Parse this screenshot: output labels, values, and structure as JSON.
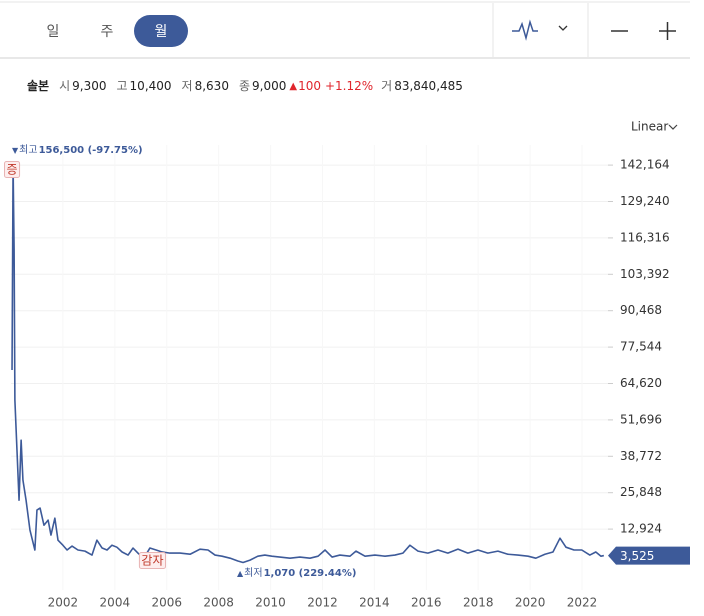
{
  "tabs": [
    "일",
    "주",
    "월"
  ],
  "selected_tab": 2,
  "quote": {
    "name": "솔본",
    "fields": [
      {
        "label": "시",
        "value": "9,300"
      },
      {
        "label": "고",
        "value": "10,400"
      },
      {
        "label": "저",
        "value": "8,630"
      },
      {
        "label": "종",
        "value": "9,000"
      }
    ],
    "change": "100",
    "change_pct": "+1.12%",
    "volume_label": "거",
    "volume": "83,840,485"
  },
  "scale_mode": "Linear",
  "chart_data": {
    "type": "line",
    "x": [
      2000.04,
      2000.08,
      2000.12,
      2000.15,
      2000.23,
      2000.31,
      2000.39,
      2000.46,
      2000.58,
      2000.73,
      2000.92,
      2001.0,
      2001.12,
      2001.27,
      2001.43,
      2001.54,
      2001.69,
      2001.81,
      2002.0,
      2002.16,
      2002.35,
      2002.58,
      2002.85,
      2003.12,
      2003.31,
      2003.51,
      2003.7,
      2003.89,
      2004.08,
      2004.28,
      2004.51,
      2004.7,
      2004.89,
      2005.12,
      2005.35,
      2005.59,
      2005.82,
      2006.12,
      2006.51,
      2006.9,
      2007.28,
      2007.59,
      2007.86,
      2008.13,
      2008.44,
      2008.74,
      2008.94,
      2009.21,
      2009.51,
      2009.78,
      2010.05,
      2010.36,
      2010.75,
      2011.13,
      2011.52,
      2011.83,
      2012.1,
      2012.37,
      2012.67,
      2013.06,
      2013.29,
      2013.64,
      2014.02,
      2014.41,
      2014.79,
      2015.1,
      2015.37,
      2015.68,
      2016.06,
      2016.45,
      2016.83,
      2017.22,
      2017.6,
      2017.99,
      2018.37,
      2018.76,
      2019.14,
      2019.53,
      2019.92,
      2020.22,
      2020.57,
      2020.88,
      2021.15,
      2021.38,
      2021.69,
      2021.99,
      2022.3,
      2022.53,
      2022.73,
      2022.84
    ],
    "series": [
      {
        "color": "#3d5a99",
        "values": [
          69400,
          142200,
          112000,
          58700,
          41000,
          23200,
          44500,
          30300,
          23200,
          12600,
          5500,
          19700,
          20400,
          14300,
          16100,
          10800,
          16800,
          9000,
          7200,
          5500,
          6900,
          5500,
          5100,
          3700,
          9000,
          6200,
          5500,
          7200,
          6500,
          4800,
          3700,
          6200,
          4400,
          2600,
          6200,
          5500,
          4800,
          4400,
          4400,
          4000,
          5800,
          5500,
          3700,
          3300,
          2600,
          1600,
          1070,
          1900,
          3300,
          3700,
          3300,
          3000,
          2600,
          3000,
          2600,
          3300,
          5500,
          3000,
          3700,
          3300,
          5100,
          3300,
          3700,
          3300,
          3700,
          4400,
          7200,
          5100,
          4400,
          5500,
          4400,
          5800,
          4400,
          5500,
          4400,
          5100,
          4000,
          3700,
          3300,
          2600,
          4000,
          4800,
          9700,
          6500,
          5500,
          5500,
          3700,
          4800,
          3300,
          3525
        ]
      }
    ],
    "xlim": [
      2000,
      2023
    ],
    "xticks": [
      2002,
      2004,
      2006,
      2008,
      2010,
      2012,
      2014,
      2016,
      2018,
      2020,
      2022
    ],
    "ylim": [
      -8700,
      149300
    ],
    "yticks": [
      {
        "value": 12924,
        "label": "12,924"
      },
      {
        "value": 25848,
        "label": "25,848"
      },
      {
        "value": 38772,
        "label": "38,772"
      },
      {
        "value": 51696,
        "label": "51,696"
      },
      {
        "value": 64620,
        "label": "64,620"
      },
      {
        "value": 77544,
        "label": "77,544"
      },
      {
        "value": 90468,
        "label": "90,468"
      },
      {
        "value": 103392,
        "label": "103,392"
      },
      {
        "value": 116316,
        "label": "116,316"
      },
      {
        "value": 129240,
        "label": "129,240"
      },
      {
        "value": 142164,
        "label": "142,164"
      }
    ],
    "grid": true,
    "last_price": {
      "value": 3525,
      "label": "3,525"
    },
    "high": {
      "label": "최고",
      "text": "156,500 (-97.75%)"
    },
    "low": {
      "label": "최저",
      "text": "1,070 (229.44%)"
    },
    "events": [
      {
        "x": 2000.04,
        "label": "증"
      },
      {
        "x": 2005.45,
        "label": "감자"
      }
    ]
  }
}
